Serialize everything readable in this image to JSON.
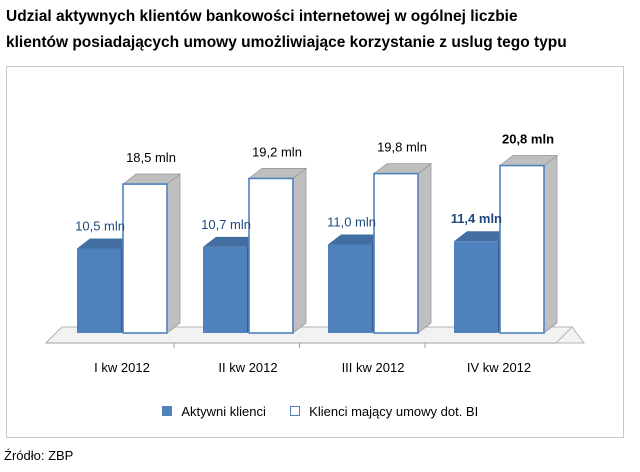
{
  "chart_data": {
    "type": "bar",
    "title_line1": "Udzial aktywnych klientów bankowości internetowej w ogólnej liczbie",
    "title_line2": "klientów posiadających umowy umożliwiające korzystanie z uslug tego typu",
    "categories": [
      "I kw 2012",
      "II kw 2012",
      "III kw 2012",
      "IV kw 2012"
    ],
    "series": [
      {
        "name": "Aktywni klienci",
        "values": [
          10.5,
          10.7,
          11.0,
          11.4
        ],
        "labels": [
          "10,5 mln",
          "10,7 mln",
          "11,0 mln",
          "11,4 mln"
        ],
        "color": "#4f81bd"
      },
      {
        "name": "Klienci mający umowy dot. BI",
        "values": [
          18.5,
          19.2,
          19.8,
          20.8
        ],
        "labels": [
          "18,5 mln",
          "19,2 mln",
          "19,8 mln",
          "20,8 mln"
        ],
        "color": "#ffffff"
      }
    ],
    "bold_last_labels": true,
    "legend_position": "bottom",
    "grid": false
  },
  "source": "Źródło: ZBP"
}
